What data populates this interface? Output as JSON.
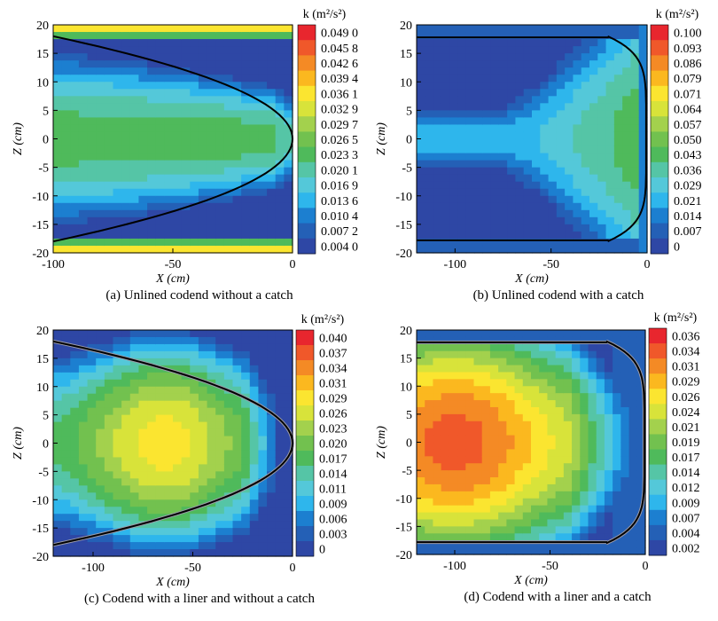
{
  "chart_data": [
    {
      "type": "heatmap",
      "caption": "(a) Unlined codend without a catch",
      "xlabel": "X (cm)",
      "ylabel": "Z (cm)",
      "xlim": [
        -100,
        0
      ],
      "ylim": [
        -20,
        20
      ],
      "xticks": [
        -100,
        -50,
        0
      ],
      "yticks": [
        -20,
        -15,
        -10,
        -5,
        0,
        5,
        10,
        15,
        20
      ],
      "colorbar_title": "k (m²/s²)",
      "colorbar_labels": [
        "0.049 0",
        "0.045 8",
        "0.042 6",
        "0.039 4",
        "0.036 1",
        "0.032 9",
        "0.029 7",
        "0.026 5",
        "0.023 3",
        "0.020 1",
        "0.016 9",
        "0.013 6",
        "0.010 4",
        "0.007 2",
        "0.004 0"
      ],
      "colors": [
        "#e8262e",
        "#f0582a",
        "#f48a25",
        "#fbb81f",
        "#fbe530",
        "#d8e33a",
        "#a3d14d",
        "#72c14f",
        "#4fba5b",
        "#55c5a6",
        "#54c8d9",
        "#2eb6ec",
        "#1c7fd0",
        "#2460b6",
        "#2e47a5"
      ],
      "contour_label": "codend profile",
      "catch": false,
      "liner": false
    },
    {
      "type": "heatmap",
      "caption": "(b) Unlined codend with a catch",
      "xlabel": "X (cm)",
      "ylabel": "Z (cm)",
      "xlim": [
        -120,
        0
      ],
      "ylim": [
        -20,
        20
      ],
      "xticks": [
        -100,
        -50,
        0
      ],
      "yticks": [
        -20,
        -15,
        -10,
        -5,
        0,
        5,
        10,
        15,
        20
      ],
      "colorbar_title": "k (m²/s²)",
      "colorbar_labels": [
        "0.100",
        "0.093",
        "0.086",
        "0.079",
        "0.071",
        "0.064",
        "0.057",
        "0.050",
        "0.043",
        "0.036",
        "0.029",
        "0.021",
        "0.014",
        "0.007",
        "0"
      ],
      "colors": [
        "#e8262e",
        "#f0582a",
        "#f48a25",
        "#fbb81f",
        "#fbe530",
        "#d8e33a",
        "#a3d14d",
        "#72c14f",
        "#4fba5b",
        "#55c5a6",
        "#54c8d9",
        "#2eb6ec",
        "#1c7fd0",
        "#2460b6",
        "#2e47a5"
      ],
      "catch": true,
      "liner": false
    },
    {
      "type": "heatmap",
      "caption": "(c) Codend with a liner and without a catch",
      "xlabel": "X (cm)",
      "ylabel": "Z (cm)",
      "xlim": [
        -120,
        0
      ],
      "ylim": [
        -20,
        20
      ],
      "xticks": [
        -100,
        -50,
        0
      ],
      "yticks": [
        -20,
        -15,
        -10,
        -5,
        0,
        5,
        10,
        15,
        20
      ],
      "colorbar_title": "k (m²/s²)",
      "colorbar_labels": [
        "0.040",
        "0.037",
        "0.034",
        "0.031",
        "0.029",
        "0.026",
        "0.023",
        "0.020",
        "0.017",
        "0.014",
        "0.011",
        "0.009",
        "0.006",
        "0.003",
        "0"
      ],
      "colors": [
        "#e8262e",
        "#f0582a",
        "#f48a25",
        "#fbb81f",
        "#fbe530",
        "#d8e33a",
        "#a3d14d",
        "#72c14f",
        "#4fba5b",
        "#55c5a6",
        "#54c8d9",
        "#2eb6ec",
        "#1c7fd0",
        "#2460b6",
        "#2e47a5"
      ],
      "catch": false,
      "liner": true
    },
    {
      "type": "heatmap",
      "caption": "(d) Codend with a liner and a catch",
      "xlabel": "X (cm)",
      "ylabel": "Z (cm)",
      "xlim": [
        -120,
        0
      ],
      "ylim": [
        -20,
        20
      ],
      "xticks": [
        -100,
        -50,
        0
      ],
      "yticks": [
        -20,
        -15,
        -10,
        -5,
        0,
        5,
        10,
        15,
        20
      ],
      "colorbar_title": "k (m²/s²)",
      "colorbar_labels": [
        "0.036",
        "0.034",
        "0.031",
        "0.029",
        "0.026",
        "0.024",
        "0.021",
        "0.019",
        "0.017",
        "0.014",
        "0.012",
        "0.009",
        "0.007",
        "0.004",
        "0.002"
      ],
      "colors": [
        "#e8262e",
        "#f0582a",
        "#f48a25",
        "#fbb81f",
        "#fbe530",
        "#d8e33a",
        "#a3d14d",
        "#72c14f",
        "#4fba5b",
        "#55c5a6",
        "#54c8d9",
        "#2eb6ec",
        "#1c7fd0",
        "#2460b6",
        "#2e47a5"
      ],
      "catch": true,
      "liner": true
    }
  ]
}
